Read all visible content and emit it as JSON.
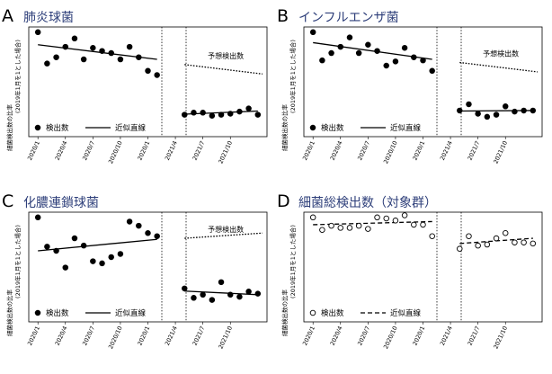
{
  "colors": {
    "title": "#2e3f7a",
    "ink": "#000000",
    "frame": "#000000",
    "background": "#ffffff"
  },
  "chart_data": [
    {
      "panel": "A",
      "title": "肺炎球菌",
      "type": "scatter",
      "ylabel": "(2019年1月を1とした場合)",
      "ylabel2": "細菌検出数の比率",
      "x_ticks": [
        "2020/1",
        "2020/4",
        "2020/7",
        "2020/10",
        "2020/1",
        "2021/4",
        "2021/7",
        "2021/10"
      ],
      "ylim": [
        0,
        1.05
      ],
      "marker": "filled",
      "fit_style": "solid",
      "annotation": "予想検出数",
      "projection_label_shown": true,
      "pre_x": [
        1,
        2,
        3,
        4,
        5,
        6,
        7,
        8,
        9,
        10,
        11,
        12,
        13,
        14
      ],
      "pre_y": [
        1.0,
        0.7,
        0.76,
        0.86,
        0.94,
        0.74,
        0.85,
        0.82,
        0.8,
        0.74,
        0.86,
        0.76,
        0.63,
        0.59
      ],
      "pre_fit": [
        0.88,
        0.74
      ],
      "proj_line": [
        0.69,
        0.6
      ],
      "post_x": [
        17,
        18,
        19,
        20,
        21,
        22,
        23,
        24,
        25
      ],
      "post_y": [
        0.21,
        0.23,
        0.23,
        0.2,
        0.21,
        0.22,
        0.24,
        0.27,
        0.21
      ],
      "post_fit": [
        0.215,
        0.245
      ],
      "legend": {
        "marker_label": "検出数",
        "line_label": "近似直線"
      }
    },
    {
      "panel": "B",
      "title": "インフルエンザ菌",
      "type": "scatter",
      "ylabel": "(2019年1月を1とした場合)",
      "ylabel2": "細菌検出数の比率",
      "x_ticks": [
        "2020/1",
        "2020/4",
        "2020/7",
        "2020/10",
        "2020/1",
        "2021/4",
        "2021/7",
        "2021/10"
      ],
      "ylim": [
        0,
        1.05
      ],
      "marker": "filled",
      "fit_style": "solid",
      "annotation": "予想検出数",
      "projection_label_shown": true,
      "pre_x": [
        1,
        2,
        3,
        4,
        5,
        6,
        7,
        8,
        9,
        10,
        11,
        12,
        13,
        14
      ],
      "pre_y": [
        1.0,
        0.73,
        0.8,
        0.86,
        0.95,
        0.8,
        0.88,
        0.82,
        0.68,
        0.72,
        0.85,
        0.76,
        0.73,
        0.63
      ],
      "pre_fit": [
        0.9,
        0.74
      ],
      "proj_line": [
        0.71,
        0.62
      ],
      "post_x": [
        17,
        18,
        19,
        20,
        21,
        22,
        23,
        24,
        25
      ],
      "post_y": [
        0.25,
        0.31,
        0.22,
        0.19,
        0.21,
        0.29,
        0.24,
        0.25,
        0.25
      ],
      "post_fit": [
        0.245,
        0.25
      ],
      "legend": {
        "marker_label": "検出数",
        "line_label": "近似直線"
      }
    },
    {
      "panel": "C",
      "title": "化膿連鎖球菌",
      "type": "scatter",
      "ylabel": "(2019年1月を1とした場合)",
      "ylabel2": "細菌検出数の比率",
      "x_ticks": [
        "2020/1",
        "2020/4",
        "2020/7",
        "2020/10",
        "2020/1",
        "2021/4",
        "2021/7",
        "2021/10"
      ],
      "ylim": [
        0,
        1.05
      ],
      "marker": "filled",
      "fit_style": "solid",
      "annotation": "予想検出数",
      "projection_label_shown": true,
      "pre_x": [
        1,
        2,
        3,
        4,
        5,
        6,
        7,
        8,
        9,
        10,
        11,
        12,
        13,
        14
      ],
      "pre_y": [
        1.0,
        0.72,
        0.68,
        0.52,
        0.8,
        0.73,
        0.58,
        0.56,
        0.62,
        0.65,
        0.96,
        0.92,
        0.85,
        0.82
      ],
      "pre_fit": [
        0.68,
        0.79
      ],
      "proj_line": [
        0.8,
        0.85
      ],
      "post_x": [
        17,
        18,
        19,
        20,
        21,
        22,
        23,
        24,
        25
      ],
      "post_y": [
        0.32,
        0.23,
        0.26,
        0.21,
        0.38,
        0.26,
        0.24,
        0.29,
        0.27
      ],
      "post_fit": [
        0.295,
        0.26
      ],
      "legend": {
        "marker_label": "検出数",
        "line_label": "近似直線"
      }
    },
    {
      "panel": "D",
      "title": "細菌総検出数（対象群）",
      "type": "scatter",
      "ylabel": "(2019年1月を1とした場合)",
      "ylabel2": "細菌検出数の比率",
      "x_ticks": [
        "2020/1",
        "2020/4",
        "2020/7",
        "2020/10",
        "2020/1",
        "2021/4",
        "2021/7",
        "2021/10"
      ],
      "ylim": [
        0,
        1.05
      ],
      "marker": "hollow",
      "fit_style": "dashed",
      "annotation": "",
      "projection_label_shown": false,
      "pre_x": [
        1,
        2,
        3,
        4,
        5,
        6,
        7,
        8,
        9,
        10,
        11,
        12,
        13,
        14
      ],
      "pre_y": [
        1.0,
        0.88,
        0.92,
        0.9,
        0.9,
        0.92,
        0.89,
        1.0,
        0.99,
        0.97,
        1.02,
        0.93,
        0.93,
        0.82
      ],
      "pre_fit": [
        0.93,
        0.96
      ],
      "proj_line": null,
      "post_x": [
        17,
        18,
        19,
        20,
        21,
        22,
        23,
        24,
        25
      ],
      "post_y": [
        0.7,
        0.82,
        0.73,
        0.74,
        0.8,
        0.85,
        0.76,
        0.76,
        0.75
      ],
      "post_fit": [
        0.75,
        0.8
      ],
      "legend": {
        "marker_label": "検出数",
        "line_label": "近似直線"
      }
    }
  ]
}
